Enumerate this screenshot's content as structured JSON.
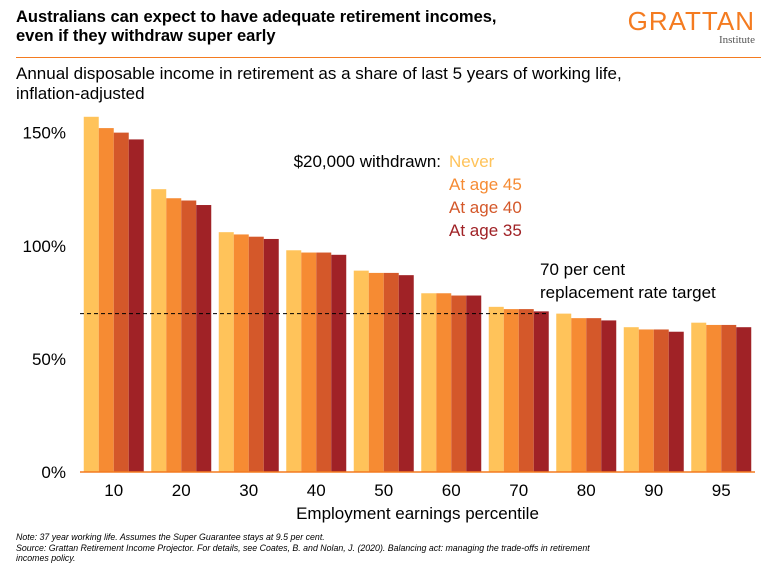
{
  "header": {
    "title_line1": "Australians can expect to have adequate retirement incomes,",
    "title_line2": "even if they withdraw super early",
    "logo_main": "GRATTAN",
    "logo_sub": "Institute",
    "subtitle_line1": "Annual disposable income in retirement as a share of last 5 years of working life,",
    "subtitle_line2": "inflation-adjusted"
  },
  "chart_data": {
    "type": "bar",
    "categories": [
      "10",
      "20",
      "30",
      "40",
      "50",
      "60",
      "70",
      "80",
      "90",
      "95"
    ],
    "series": [
      {
        "name": "Never",
        "color": "#ffc35a",
        "values": [
          157,
          125,
          106,
          98,
          89,
          79,
          73,
          70,
          64,
          66
        ]
      },
      {
        "name": "At age 45",
        "color": "#f68b33",
        "values": [
          152,
          121,
          105,
          97,
          88,
          79,
          72,
          68,
          63,
          65
        ]
      },
      {
        "name": "At age 40",
        "color": "#d4582a",
        "values": [
          150,
          120,
          104,
          97,
          88,
          78,
          72,
          68,
          63,
          65
        ]
      },
      {
        "name": "At age 35",
        "color": "#a02226",
        "values": [
          147,
          118,
          103,
          96,
          87,
          78,
          71,
          67,
          62,
          64
        ]
      }
    ],
    "xlabel": "Employment earnings percentile",
    "ylabel": "",
    "ylim": [
      0,
      160
    ],
    "yticks": [
      0,
      50,
      100,
      150
    ],
    "ytick_labels": [
      "0%",
      "50%",
      "100%",
      "150%"
    ],
    "legend_title": "$20,000 withdrawn:",
    "legend_position": "top-right",
    "reference_line": {
      "value": 70,
      "label_line1": "70 per cent",
      "label_line2": "replacement rate target"
    },
    "grid": false
  },
  "notes": {
    "note": "Note: 37 year working life. Assumes the Super Guarantee stays at 9.5 per cent.",
    "source_line1": "Source: Grattan Retirement Income Projector. For details, see Coates, B. and Nolan, J. (2020). Balancing act: managing the trade-offs in retirement",
    "source_line2": "incomes policy."
  }
}
